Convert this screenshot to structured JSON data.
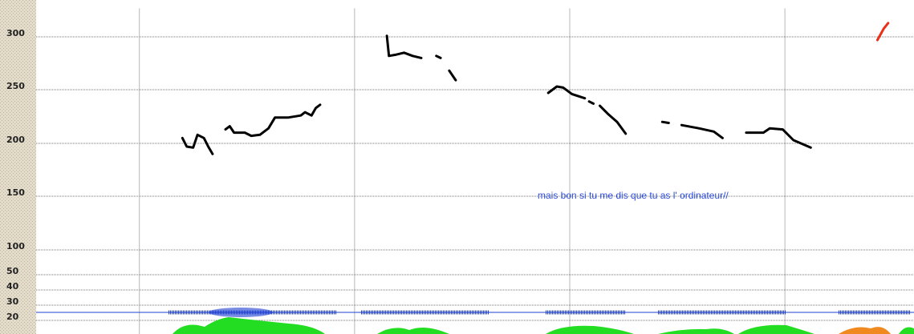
{
  "chart_data": {
    "type": "line",
    "annotation": "mais bon si tu me dis que tu as l' ordinateur//",
    "annotation_color": "#2b4bd8",
    "xlim": [
      0.52,
      4.6
    ],
    "xticks": [
      1,
      2,
      3,
      4
    ],
    "ylim": [
      15,
      327
    ],
    "yticks": [
      300,
      250,
      200,
      150,
      100,
      50,
      40,
      30,
      20
    ],
    "grid": true,
    "series": [
      {
        "color": "#000000",
        "x": [
          1.2,
          1.22,
          1.25,
          1.27,
          1.3,
          1.32,
          1.34
        ],
        "values": [
          205,
          197,
          196,
          208,
          205,
          197,
          190
        ]
      },
      {
        "color": "#000000",
        "x": [
          1.4,
          1.42,
          1.44,
          1.49,
          1.52,
          1.56,
          1.6,
          1.63,
          1.69,
          1.75,
          1.77,
          1.8,
          1.82,
          1.84
        ],
        "values": [
          213,
          216,
          210,
          210,
          207,
          208,
          214,
          224,
          224,
          226,
          229,
          226,
          233,
          236
        ]
      },
      {
        "color": "#000000",
        "x": [
          2.15,
          2.16,
          2.19,
          2.23,
          2.27,
          2.31
        ],
        "values": [
          301,
          282,
          283,
          285,
          282,
          280
        ]
      },
      {
        "color": "#000000",
        "x": [
          2.38,
          2.4
        ],
        "values": [
          282,
          280
        ]
      },
      {
        "color": "#000000",
        "x": [
          2.44,
          2.47
        ],
        "values": [
          268,
          259
        ]
      },
      {
        "color": "#000000",
        "x": [
          2.9,
          2.94,
          2.97,
          3.01,
          3.07
        ],
        "values": [
          247,
          253,
          252,
          246,
          242
        ]
      },
      {
        "color": "#000000",
        "x": [
          3.09,
          3.11
        ],
        "values": [
          239,
          237
        ]
      },
      {
        "color": "#000000",
        "x": [
          3.14,
          3.18,
          3.22,
          3.26
        ],
        "values": [
          235,
          227,
          220,
          209
        ]
      },
      {
        "color": "#000000",
        "x": [
          3.43,
          3.46
        ],
        "values": [
          220,
          219
        ]
      },
      {
        "color": "#000000",
        "x": [
          3.52,
          3.6,
          3.67,
          3.71
        ],
        "values": [
          217,
          214,
          211,
          205
        ]
      },
      {
        "color": "#000000",
        "x": [
          3.82,
          3.9,
          3.93,
          3.99,
          4.04,
          4.12
        ],
        "values": [
          210,
          210,
          214,
          213,
          203,
          196
        ]
      },
      {
        "color": "#e8301a",
        "x": [
          4.43,
          4.46,
          4.48
        ],
        "values": [
          297,
          308,
          313
        ]
      }
    ]
  }
}
